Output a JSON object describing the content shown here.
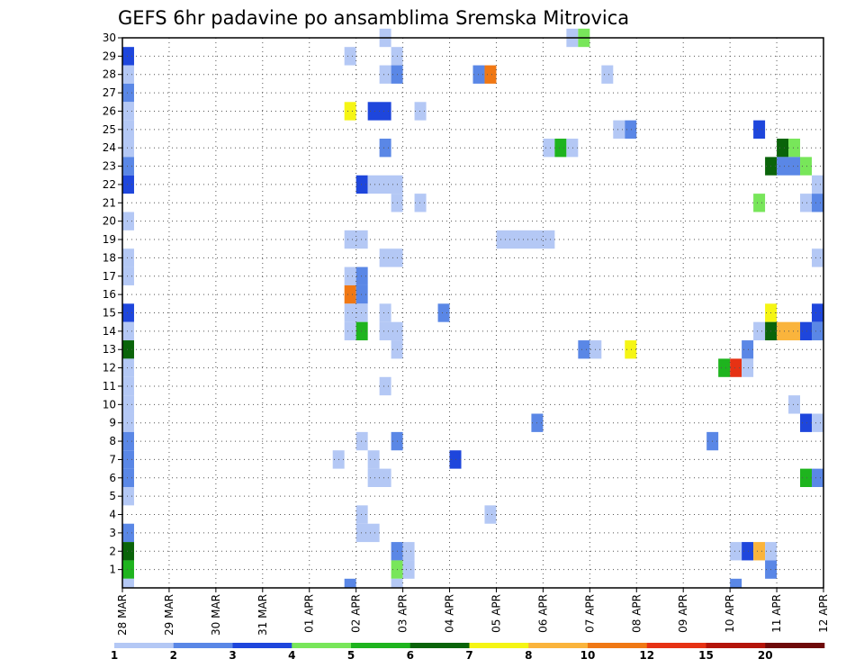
{
  "chart_data": {
    "type": "heatmap",
    "title": "GEFS 6hr padavine po ansamblima Sremska Mitrovica",
    "x_tick_labels": [
      "28 MAR",
      "29 MAR",
      "30 MAR",
      "31 MAR",
      "01 APR",
      "02 APR",
      "03 APR",
      "04 APR",
      "05 APR",
      "06 APR",
      "07 APR",
      "08 APR",
      "09 APR",
      "10 APR",
      "11 APR",
      "12 APR"
    ],
    "x_range": [
      0,
      60
    ],
    "y_tick_labels": [
      "1",
      "2",
      "3",
      "4",
      "5",
      "6",
      "7",
      "8",
      "9",
      "10",
      "11",
      "12",
      "13",
      "14",
      "15",
      "16",
      "17",
      "18",
      "19",
      "20",
      "21",
      "22",
      "23",
      "24",
      "25",
      "26",
      "27",
      "28",
      "29",
      "30"
    ],
    "y_range": [
      0,
      30
    ],
    "grid": true,
    "legend_placement": "bottom",
    "legend": {
      "labels": [
        "1",
        "2",
        "3",
        "4",
        "5",
        "6",
        "7",
        "8",
        "10",
        "12",
        "15",
        "20"
      ],
      "colors": [
        "#b4c8f5",
        "#5a87e6",
        "#1e46dc",
        "#78e65a",
        "#1eb41e",
        "#0a640a",
        "#f5f514",
        "#fab43c",
        "#f07814",
        "#e63214",
        "#b4140a",
        "#6e0a0a"
      ]
    },
    "cells": [
      {
        "m": 30,
        "x": 22.5,
        "w": 1,
        "c": 0
      },
      {
        "m": 30,
        "x": 38.5,
        "w": 1,
        "c": 0
      },
      {
        "m": 30,
        "x": 39.5,
        "w": 1,
        "c": 3
      },
      {
        "m": 29,
        "x": 0.5,
        "w": 1,
        "c": 2
      },
      {
        "m": 29,
        "x": 19.5,
        "w": 1,
        "c": 0
      },
      {
        "m": 29,
        "x": 23.5,
        "w": 1,
        "c": 0
      },
      {
        "m": 28,
        "x": 0.5,
        "w": 1,
        "c": 0
      },
      {
        "m": 28,
        "x": 22.5,
        "w": 1,
        "c": 0
      },
      {
        "m": 28,
        "x": 23.5,
        "w": 1,
        "c": 1
      },
      {
        "m": 28,
        "x": 30.5,
        "w": 1,
        "c": 1
      },
      {
        "m": 28,
        "x": 31.5,
        "w": 1,
        "c": 8
      },
      {
        "m": 28,
        "x": 41.5,
        "w": 1,
        "c": 0
      },
      {
        "m": 27,
        "x": 0.5,
        "w": 1,
        "c": 1
      },
      {
        "m": 26,
        "x": 0.5,
        "w": 1,
        "c": 0
      },
      {
        "m": 26,
        "x": 19.5,
        "w": 1,
        "c": 6
      },
      {
        "m": 26,
        "x": 21.5,
        "w": 2,
        "c": 2
      },
      {
        "m": 26,
        "x": 25.5,
        "w": 1,
        "c": 0
      },
      {
        "m": 25,
        "x": 0.5,
        "w": 1,
        "c": 0
      },
      {
        "m": 25,
        "x": 42.5,
        "w": 1,
        "c": 0
      },
      {
        "m": 25,
        "x": 43.5,
        "w": 1,
        "c": 1
      },
      {
        "m": 25,
        "x": 54.5,
        "w": 1,
        "c": 2
      },
      {
        "m": 24,
        "x": 0.5,
        "w": 1,
        "c": 0
      },
      {
        "m": 24,
        "x": 22.5,
        "w": 1,
        "c": 1
      },
      {
        "m": 24,
        "x": 36.5,
        "w": 1,
        "c": 0
      },
      {
        "m": 24,
        "x": 37.5,
        "w": 1,
        "c": 4
      },
      {
        "m": 24,
        "x": 38.5,
        "w": 1,
        "c": 0
      },
      {
        "m": 24,
        "x": 56.5,
        "w": 1,
        "c": 5
      },
      {
        "m": 24,
        "x": 57.5,
        "w": 1,
        "c": 3
      },
      {
        "m": 23,
        "x": 0.5,
        "w": 1,
        "c": 1
      },
      {
        "m": 23,
        "x": 55.5,
        "w": 1,
        "c": 5
      },
      {
        "m": 23,
        "x": 56.5,
        "w": 2,
        "c": 1
      },
      {
        "m": 23,
        "x": 58.5,
        "w": 1,
        "c": 3
      },
      {
        "m": 22,
        "x": 0.5,
        "w": 1,
        "c": 2
      },
      {
        "m": 22,
        "x": 20.5,
        "w": 1,
        "c": 2
      },
      {
        "m": 22,
        "x": 21.5,
        "w": 3,
        "c": 0
      },
      {
        "m": 22,
        "x": 59.5,
        "w": 1,
        "c": 0
      },
      {
        "m": 21,
        "x": 23.5,
        "w": 1,
        "c": 0
      },
      {
        "m": 21,
        "x": 25.5,
        "w": 1,
        "c": 0
      },
      {
        "m": 21,
        "x": 54.5,
        "w": 1,
        "c": 3
      },
      {
        "m": 21,
        "x": 58.5,
        "w": 1,
        "c": 0
      },
      {
        "m": 21,
        "x": 59.5,
        "w": 1,
        "c": 1
      },
      {
        "m": 20,
        "x": 0.5,
        "w": 1,
        "c": 0
      },
      {
        "m": 19,
        "x": 19.5,
        "w": 2,
        "c": 0
      },
      {
        "m": 19,
        "x": 32.5,
        "w": 5,
        "c": 0
      },
      {
        "m": 18,
        "x": 0.5,
        "w": 1,
        "c": 0
      },
      {
        "m": 18,
        "x": 22.5,
        "w": 2,
        "c": 0
      },
      {
        "m": 18,
        "x": 59.5,
        "w": 1,
        "c": 0
      },
      {
        "m": 17,
        "x": 0.5,
        "w": 1,
        "c": 0
      },
      {
        "m": 17,
        "x": 19.5,
        "w": 1,
        "c": 0
      },
      {
        "m": 17,
        "x": 20.5,
        "w": 1,
        "c": 1
      },
      {
        "m": 16,
        "x": 19.5,
        "w": 1,
        "c": 8
      },
      {
        "m": 16,
        "x": 20.5,
        "w": 1,
        "c": 1
      },
      {
        "m": 15,
        "x": 0.5,
        "w": 1,
        "c": 2
      },
      {
        "m": 15,
        "x": 19.5,
        "w": 2,
        "c": 0
      },
      {
        "m": 15,
        "x": 22.5,
        "w": 1,
        "c": 0
      },
      {
        "m": 15,
        "x": 27.5,
        "w": 1,
        "c": 1
      },
      {
        "m": 15,
        "x": 55.5,
        "w": 1,
        "c": 6
      },
      {
        "m": 15,
        "x": 59.5,
        "w": 1,
        "c": 2
      },
      {
        "m": 14,
        "x": 0.5,
        "w": 1,
        "c": 0
      },
      {
        "m": 14,
        "x": 19.5,
        "w": 1,
        "c": 0
      },
      {
        "m": 14,
        "x": 20.5,
        "w": 1,
        "c": 4
      },
      {
        "m": 14,
        "x": 22.5,
        "w": 2,
        "c": 0
      },
      {
        "m": 14,
        "x": 54.5,
        "w": 1,
        "c": 0
      },
      {
        "m": 14,
        "x": 55.5,
        "w": 1,
        "c": 5
      },
      {
        "m": 14,
        "x": 56.5,
        "w": 2,
        "c": 7
      },
      {
        "m": 14,
        "x": 58.5,
        "w": 1,
        "c": 2
      },
      {
        "m": 14,
        "x": 59.5,
        "w": 1,
        "c": 1
      },
      {
        "m": 13,
        "x": 0.5,
        "w": 1,
        "c": 5
      },
      {
        "m": 13,
        "x": 23.5,
        "w": 1,
        "c": 0
      },
      {
        "m": 13,
        "x": 39.5,
        "w": 1,
        "c": 1
      },
      {
        "m": 13,
        "x": 40.5,
        "w": 1,
        "c": 0
      },
      {
        "m": 13,
        "x": 43.5,
        "w": 1,
        "c": 6
      },
      {
        "m": 13,
        "x": 53.5,
        "w": 1,
        "c": 1
      },
      {
        "m": 12,
        "x": 0.5,
        "w": 1,
        "c": 0
      },
      {
        "m": 12,
        "x": 51.5,
        "w": 1,
        "c": 4
      },
      {
        "m": 12,
        "x": 52.5,
        "w": 1,
        "c": 9
      },
      {
        "m": 12,
        "x": 53.5,
        "w": 1,
        "c": 0
      },
      {
        "m": 11,
        "x": 0.5,
        "w": 1,
        "c": 0
      },
      {
        "m": 11,
        "x": 22.5,
        "w": 1,
        "c": 0
      },
      {
        "m": 10,
        "x": 0.5,
        "w": 1,
        "c": 0
      },
      {
        "m": 10,
        "x": 57.5,
        "w": 1,
        "c": 0
      },
      {
        "m": 9,
        "x": 0.5,
        "w": 1,
        "c": 0
      },
      {
        "m": 9,
        "x": 35.5,
        "w": 1,
        "c": 1
      },
      {
        "m": 9,
        "x": 58.5,
        "w": 1,
        "c": 2
      },
      {
        "m": 9,
        "x": 59.5,
        "w": 1,
        "c": 0
      },
      {
        "m": 8,
        "x": 0.5,
        "w": 1,
        "c": 1
      },
      {
        "m": 8,
        "x": 20.5,
        "w": 1,
        "c": 0
      },
      {
        "m": 8,
        "x": 23.5,
        "w": 1,
        "c": 1
      },
      {
        "m": 8,
        "x": 50.5,
        "w": 1,
        "c": 1
      },
      {
        "m": 7,
        "x": 0.5,
        "w": 1,
        "c": 1
      },
      {
        "m": 7,
        "x": 18.5,
        "w": 1,
        "c": 0
      },
      {
        "m": 7,
        "x": 21.5,
        "w": 1,
        "c": 0
      },
      {
        "m": 7,
        "x": 28.5,
        "w": 1,
        "c": 2
      },
      {
        "m": 6,
        "x": 0.5,
        "w": 1,
        "c": 1
      },
      {
        "m": 6,
        "x": 21.5,
        "w": 2,
        "c": 0
      },
      {
        "m": 6,
        "x": 58.5,
        "w": 1,
        "c": 4
      },
      {
        "m": 6,
        "x": 59.5,
        "w": 1,
        "c": 1
      },
      {
        "m": 5,
        "x": 0.5,
        "w": 1,
        "c": 0
      },
      {
        "m": 4,
        "x": 20.5,
        "w": 1,
        "c": 0
      },
      {
        "m": 4,
        "x": 31.5,
        "w": 1,
        "c": 0
      },
      {
        "m": 3,
        "x": 0.5,
        "w": 1,
        "c": 1
      },
      {
        "m": 3,
        "x": 20.5,
        "w": 2,
        "c": 0
      },
      {
        "m": 2,
        "x": 0.5,
        "w": 1,
        "c": 5
      },
      {
        "m": 2,
        "x": 23.5,
        "w": 1,
        "c": 1
      },
      {
        "m": 2,
        "x": 24.5,
        "w": 1,
        "c": 0
      },
      {
        "m": 2,
        "x": 52.5,
        "w": 1,
        "c": 0
      },
      {
        "m": 2,
        "x": 53.5,
        "w": 1,
        "c": 2
      },
      {
        "m": 2,
        "x": 54.5,
        "w": 1,
        "c": 7
      },
      {
        "m": 2,
        "x": 55.5,
        "w": 1,
        "c": 0
      },
      {
        "m": 1,
        "x": 0.5,
        "w": 1,
        "c": 4
      },
      {
        "m": 1,
        "x": 23.5,
        "w": 1,
        "c": 3
      },
      {
        "m": 1,
        "x": 24.5,
        "w": 1,
        "c": 0
      },
      {
        "m": 1,
        "x": 55.5,
        "w": 1,
        "c": 1
      },
      {
        "m": 0,
        "x": 0.5,
        "w": 1,
        "c": 0
      },
      {
        "m": 0,
        "x": 19.5,
        "w": 1,
        "c": 1
      },
      {
        "m": 0,
        "x": 23.5,
        "w": 1,
        "c": 0
      },
      {
        "m": 0,
        "x": 52.5,
        "w": 1,
        "c": 1
      }
    ]
  }
}
